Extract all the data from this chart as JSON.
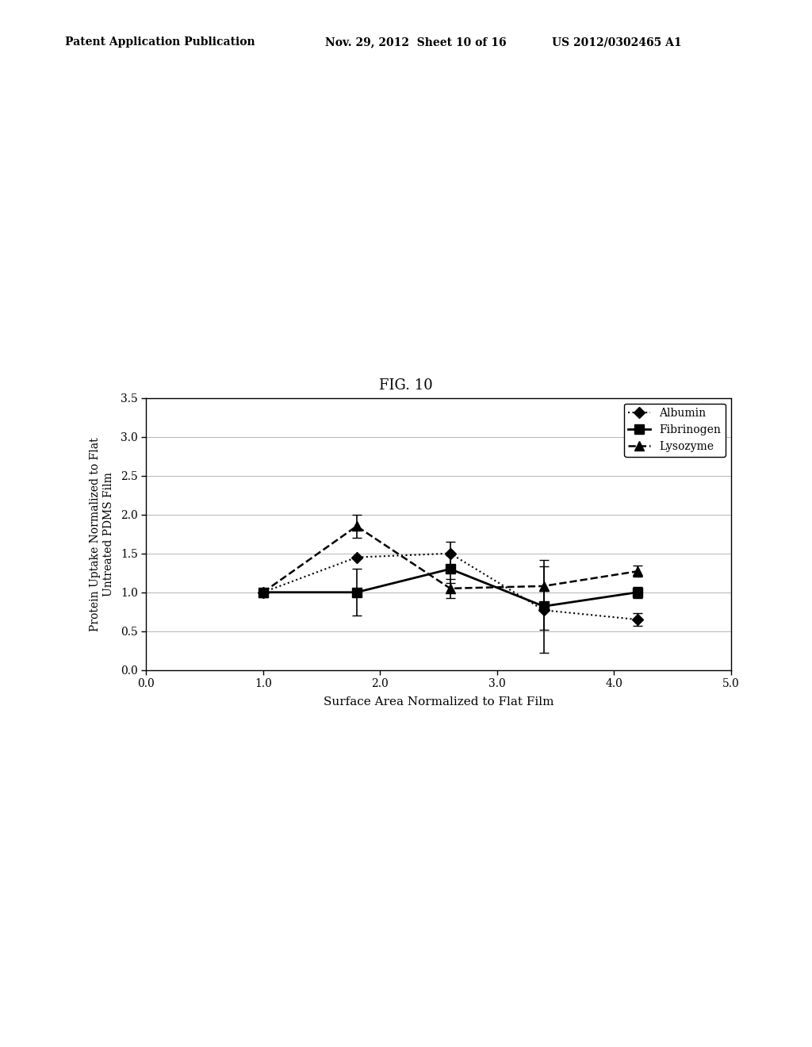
{
  "fig_label": "FIG. 10",
  "patent_header_left": "Patent Application Publication",
  "patent_header_mid": "Nov. 29, 2012  Sheet 10 of 16",
  "patent_header_right": "US 2012/0302465 A1",
  "xlabel": "Surface Area Normalized to Flat Film",
  "ylabel": "Protein Uptake Normalized to Flat\nUntreated PDMS Film",
  "xlim": [
    0.0,
    5.0
  ],
  "ylim": [
    0.0,
    3.5
  ],
  "xticks": [
    0.0,
    1.0,
    2.0,
    3.0,
    4.0,
    5.0
  ],
  "yticks": [
    0.0,
    0.5,
    1.0,
    1.5,
    2.0,
    2.5,
    3.0,
    3.5
  ],
  "albumin_x": [
    1.0,
    1.8,
    2.6,
    3.4,
    4.2
  ],
  "albumin_y": [
    1.0,
    1.45,
    1.5,
    0.77,
    0.65
  ],
  "albumin_yerr": [
    0.0,
    0.0,
    0.15,
    0.25,
    0.08
  ],
  "fibrinogen_x": [
    1.0,
    1.8,
    2.6,
    3.4,
    4.2
  ],
  "fibrinogen_y": [
    1.0,
    1.0,
    1.3,
    0.82,
    1.0
  ],
  "fibrinogen_yerr": [
    0.0,
    0.3,
    0.18,
    0.6,
    0.07
  ],
  "lysozyme_x": [
    1.0,
    1.8,
    2.6,
    3.4,
    4.2
  ],
  "lysozyme_y": [
    1.0,
    1.85,
    1.05,
    1.08,
    1.27
  ],
  "lysozyme_yerr": [
    0.0,
    0.15,
    0.12,
    0.25,
    0.07
  ],
  "background_color": "#ffffff",
  "line_color": "#000000"
}
